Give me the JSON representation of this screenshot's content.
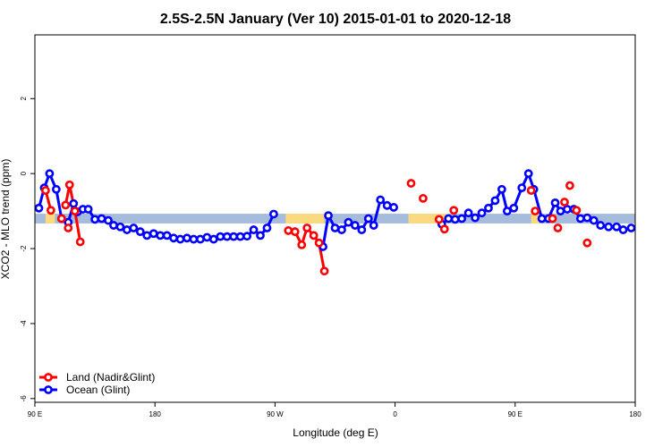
{
  "chart_data": {
    "type": "line",
    "title": "2.5S-2.5N January (Ver 10)   2015-01-01 to 2020-12-18",
    "xlabel": "Longitude (deg E)",
    "ylabel": "XCO2 - MLO trend (ppm)",
    "xlim": [
      90,
      540
    ],
    "ylim": [
      -6.1,
      3.7
    ],
    "x_ticks": [
      {
        "value": 90,
        "label": "90 E"
      },
      {
        "value": 180,
        "label": "180"
      },
      {
        "value": 270,
        "label": "90 W"
      },
      {
        "value": 360,
        "label": "0"
      },
      {
        "value": 450,
        "label": "90 E"
      },
      {
        "value": 540,
        "label": "180"
      }
    ],
    "y_ticks": [
      {
        "value": 2,
        "label": "2"
      },
      {
        "value": 0,
        "label": "0"
      },
      {
        "value": -2,
        "label": "-2"
      },
      {
        "value": -4,
        "label": "-4"
      },
      {
        "value": -6,
        "label": "-6"
      }
    ],
    "band": {
      "ymin": -1.33,
      "ymax": -1.07,
      "color": "#a6bcdc",
      "land_color": "#fbd97f",
      "land_segments": [
        [
          98,
          105
        ],
        [
          278,
          307
        ],
        [
          370,
          400
        ],
        [
          462,
          468
        ]
      ]
    },
    "legend_position": "bottom-left",
    "series": [
      {
        "name": "Land (Nadir&Glint)",
        "color": "#ff0000",
        "segments": [
          [
            [
              98,
              -0.45
            ],
            [
              102,
              -0.98
            ]
          ],
          [
            [
              113,
              -0.84
            ],
            [
              116,
              -0.3
            ],
            [
              120,
              -1.0
            ],
            [
              124,
              -1.82
            ]
          ],
          [
            [
              280,
              -1.52
            ],
            [
              285,
              -1.55
            ],
            [
              290,
              -1.9
            ],
            [
              294,
              -1.45
            ],
            [
              299,
              -1.65
            ],
            [
              303,
              -1.85
            ],
            [
              307,
              -2.6
            ]
          ]
        ],
        "points": [
          [
            98,
            -0.45
          ],
          [
            102,
            -0.98
          ],
          [
            113,
            -0.84
          ],
          [
            116,
            -0.3
          ],
          [
            120,
            -1.0
          ],
          [
            124,
            -1.82
          ],
          [
            110,
            -1.2
          ],
          [
            115,
            -1.45
          ],
          [
            280,
            -1.52
          ],
          [
            285,
            -1.55
          ],
          [
            290,
            -1.9
          ],
          [
            294,
            -1.45
          ],
          [
            299,
            -1.65
          ],
          [
            303,
            -1.85
          ],
          [
            307,
            -2.6
          ],
          [
            372,
            -0.26
          ],
          [
            381,
            -0.66
          ],
          [
            393,
            -1.22
          ],
          [
            397,
            -1.48
          ],
          [
            404,
            -0.98
          ],
          [
            462,
            -0.45
          ],
          [
            465,
            -1.0
          ],
          [
            478,
            -1.2
          ],
          [
            482,
            -1.45
          ],
          [
            487,
            -0.76
          ],
          [
            491,
            -0.32
          ],
          [
            496,
            -0.98
          ],
          [
            504,
            -1.85
          ]
        ]
      },
      {
        "name": "Ocean (Glint)",
        "color": "#0000ff",
        "segments": [
          [
            [
              93,
              -0.92
            ],
            [
              97,
              -0.38
            ],
            [
              101,
              0.0
            ],
            [
              106,
              -0.42
            ],
            [
              110,
              -1.2
            ],
            [
              115,
              -1.3
            ],
            [
              119,
              -0.8
            ],
            [
              122,
              -1.02
            ],
            [
              126,
              -0.95
            ],
            [
              130,
              -0.95
            ],
            [
              135,
              -1.22
            ],
            [
              140,
              -1.2
            ],
            [
              145,
              -1.25
            ],
            [
              149,
              -1.38
            ],
            [
              154,
              -1.42
            ],
            [
              159,
              -1.5
            ],
            [
              164,
              -1.45
            ],
            [
              169,
              -1.55
            ],
            [
              174,
              -1.65
            ],
            [
              179,
              -1.6
            ],
            [
              184,
              -1.65
            ],
            [
              189,
              -1.65
            ],
            [
              194,
              -1.72
            ],
            [
              199,
              -1.75
            ],
            [
              204,
              -1.72
            ],
            [
              209,
              -1.75
            ],
            [
              214,
              -1.75
            ],
            [
              219,
              -1.7
            ],
            [
              224,
              -1.75
            ],
            [
              229,
              -1.68
            ],
            [
              234,
              -1.68
            ],
            [
              239,
              -1.68
            ],
            [
              244,
              -1.68
            ],
            [
              249,
              -1.67
            ],
            [
              254,
              -1.5
            ],
            [
              259,
              -1.65
            ],
            [
              264,
              -1.45
            ],
            [
              269,
              -1.08
            ]
          ],
          [
            [
              306,
              -1.95
            ],
            [
              310,
              -1.12
            ],
            [
              315,
              -1.45
            ],
            [
              320,
              -1.5
            ],
            [
              325,
              -1.3
            ],
            [
              330,
              -1.38
            ],
            [
              335,
              -1.5
            ],
            [
              340,
              -1.2
            ],
            [
              344,
              -1.38
            ],
            [
              349,
              -0.7
            ],
            [
              354,
              -0.85
            ],
            [
              359,
              -0.9
            ]
          ],
          [
            [
              395,
              -1.35
            ],
            [
              400,
              -1.2
            ],
            [
              405,
              -1.22
            ],
            [
              410,
              -1.2
            ],
            [
              415,
              -1.05
            ],
            [
              420,
              -1.18
            ],
            [
              425,
              -1.05
            ],
            [
              430,
              -0.92
            ],
            [
              435,
              -0.72
            ],
            [
              440,
              -0.42
            ],
            [
              444,
              -1.0
            ],
            [
              449,
              -0.92
            ],
            [
              455,
              -0.38
            ],
            [
              460,
              0.0
            ],
            [
              464,
              -0.42
            ],
            [
              470,
              -1.2
            ],
            [
              475,
              -1.2
            ],
            [
              480,
              -0.78
            ],
            [
              484,
              -1.0
            ],
            [
              489,
              -0.95
            ],
            [
              494,
              -0.95
            ],
            [
              499,
              -1.2
            ],
            [
              504,
              -1.18
            ],
            [
              509,
              -1.25
            ],
            [
              514,
              -1.38
            ],
            [
              520,
              -1.42
            ],
            [
              526,
              -1.42
            ],
            [
              531,
              -1.5
            ],
            [
              537,
              -1.45
            ]
          ]
        ]
      }
    ]
  }
}
